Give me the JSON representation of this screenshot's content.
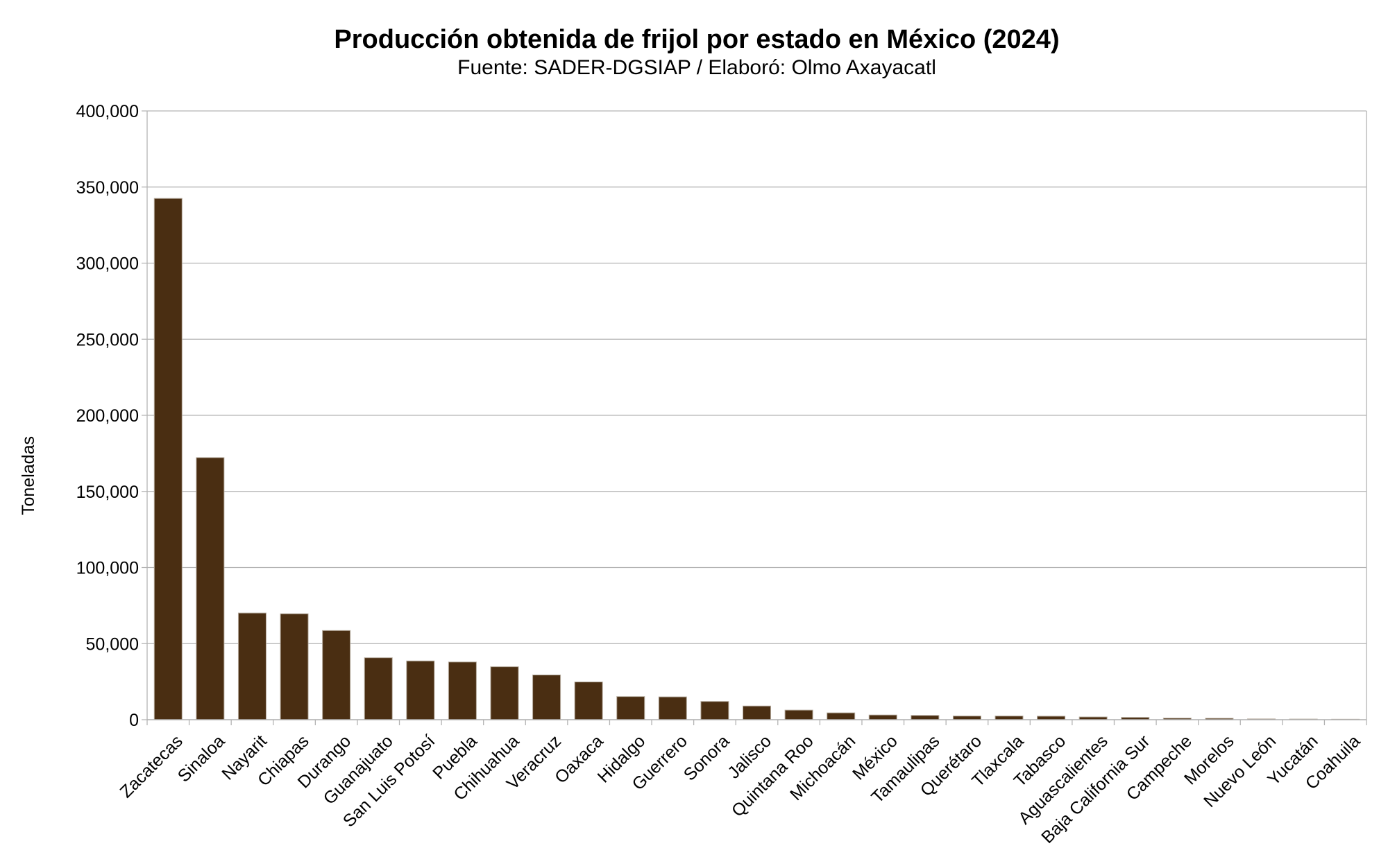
{
  "chart_data": {
    "type": "bar",
    "title": "Producción obtenida de frijol por estado en México (2024)",
    "subtitle": "Fuente: SADER-DGSIAP / Elaboró: Olmo Axayacatl",
    "xlabel": "",
    "ylabel": "Toneladas",
    "ylim": [
      0,
      400000
    ],
    "yticks": [
      0,
      50000,
      100000,
      150000,
      200000,
      250000,
      300000,
      350000,
      400000
    ],
    "ytick_labels": [
      "0",
      "50,000",
      "100,000",
      "150,000",
      "200,000",
      "250,000",
      "300,000",
      "350,000",
      "400,000"
    ],
    "grid": true,
    "bar_color": "#4a2e12",
    "categories": [
      "Zacatecas",
      "Sinaloa",
      "Nayarit",
      "Chiapas",
      "Durango",
      "Guanajuato",
      "San Luis Potosí",
      "Puebla",
      "Chihuahua",
      "Veracruz",
      "Oaxaca",
      "Hidalgo",
      "Guerrero",
      "Sonora",
      "Jalisco",
      "Quintana Roo",
      "Michoacán",
      "México",
      "Tamaulipas",
      "Querétaro",
      "Tlaxcala",
      "Tabasco",
      "Aguascalientes",
      "Baja California Sur",
      "Campeche",
      "Morelos",
      "Nuevo León",
      "Yucatán",
      "Coahuila"
    ],
    "values": [
      342500,
      172200,
      70100,
      69600,
      58600,
      40700,
      38600,
      37900,
      34800,
      29400,
      24800,
      15200,
      15000,
      12000,
      9000,
      6300,
      4500,
      3100,
      2800,
      2400,
      2400,
      2300,
      1800,
      1500,
      1000,
      900,
      500,
      400,
      300
    ]
  }
}
